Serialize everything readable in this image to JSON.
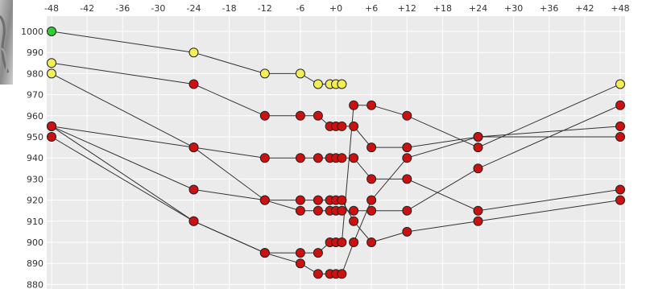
{
  "chart_data": {
    "type": "line",
    "title": "",
    "xlabel": "",
    "ylabel": "",
    "x_ticks": [
      "-48",
      "-42",
      "-36",
      "-30",
      "-24",
      "-18",
      "-12",
      "-6",
      "+0",
      "+6",
      "+12",
      "+18",
      "+24",
      "+30",
      "+36",
      "+42",
      "+48"
    ],
    "y_ticks": [
      "1000",
      "990",
      "980",
      "970",
      "960",
      "950",
      "940",
      "930",
      "920",
      "910",
      "900",
      "890",
      "880"
    ],
    "xlim": [
      -48,
      48
    ],
    "ylim": [
      880,
      1000
    ],
    "grid": true,
    "colors": {
      "plot_bg": "#ebebeb",
      "grid": "#ffffff",
      "line": "#333333",
      "red_marker": "#cc1111",
      "yellow_marker": "#f2ee55",
      "green_marker": "#33cc33",
      "marker_stroke": "#222222"
    },
    "series": [
      {
        "points": [
          [
            -48,
            1000
          ],
          [
            -24,
            990
          ],
          [
            -12,
            980
          ],
          [
            -6,
            980
          ],
          [
            -3,
            975
          ],
          [
            -1,
            975
          ],
          [
            0,
            975
          ],
          [
            1,
            975
          ]
        ],
        "markers": [
          "green",
          "yellow",
          "yellow",
          "yellow",
          "yellow",
          "yellow",
          "yellow",
          "yellow"
        ]
      },
      {
        "points": [
          [
            -48,
            985
          ],
          [
            -24,
            975
          ],
          [
            -12,
            960
          ],
          [
            -6,
            960
          ],
          [
            -3,
            960
          ],
          [
            -1,
            955
          ],
          [
            0,
            955
          ],
          [
            1,
            955
          ],
          [
            3,
            955
          ],
          [
            6,
            945
          ],
          [
            12,
            945
          ],
          [
            24,
            950
          ],
          [
            48,
            950
          ]
        ],
        "marker": "red",
        "first_marker": "yellow"
      },
      {
        "points": [
          [
            -48,
            980
          ],
          [
            -24,
            945
          ],
          [
            -12,
            920
          ],
          [
            -6,
            915
          ],
          [
            -3,
            915
          ],
          [
            -1,
            915
          ],
          [
            0,
            915
          ],
          [
            1,
            915
          ],
          [
            3,
            915
          ],
          [
            6,
            915
          ],
          [
            12,
            915
          ],
          [
            24,
            935
          ],
          [
            48,
            965
          ]
        ],
        "marker": "red",
        "first_marker": "yellow"
      },
      {
        "points": [
          [
            -48,
            955
          ],
          [
            -24,
            945
          ],
          [
            -12,
            940
          ],
          [
            -6,
            940
          ],
          [
            -3,
            940
          ],
          [
            -1,
            940
          ],
          [
            0,
            940
          ],
          [
            1,
            940
          ],
          [
            3,
            940
          ],
          [
            6,
            930
          ],
          [
            12,
            930
          ],
          [
            24,
            915
          ],
          [
            48,
            925
          ]
        ],
        "marker": "red"
      },
      {
        "points": [
          [
            -48,
            955
          ],
          [
            -24,
            925
          ],
          [
            -12,
            920
          ],
          [
            -6,
            920
          ],
          [
            -3,
            920
          ],
          [
            -1,
            920
          ],
          [
            0,
            920
          ],
          [
            1,
            920
          ],
          [
            3,
            910
          ],
          [
            6,
            900
          ],
          [
            12,
            905
          ],
          [
            24,
            910
          ],
          [
            48,
            920
          ]
        ],
        "marker": "red"
      },
      {
        "points": [
          [
            -48,
            950
          ],
          [
            -24,
            910
          ],
          [
            -12,
            895
          ],
          [
            -6,
            890
          ],
          [
            -3,
            885
          ],
          [
            -1,
            885
          ],
          [
            0,
            885
          ],
          [
            1,
            885
          ],
          [
            3,
            900
          ],
          [
            6,
            920
          ],
          [
            12,
            940
          ],
          [
            24,
            950
          ],
          [
            48,
            955
          ]
        ],
        "marker": "red"
      },
      {
        "points": [
          [
            -48,
            955
          ],
          [
            -24,
            910
          ],
          [
            -12,
            895
          ],
          [
            -6,
            895
          ],
          [
            -3,
            895
          ],
          [
            -1,
            900
          ],
          [
            0,
            900
          ],
          [
            1,
            900
          ],
          [
            3,
            965
          ],
          [
            6,
            965
          ],
          [
            12,
            960
          ],
          [
            24,
            945
          ],
          [
            48,
            975
          ]
        ],
        "marker": "red",
        "last_marker": "yellow"
      }
    ]
  }
}
